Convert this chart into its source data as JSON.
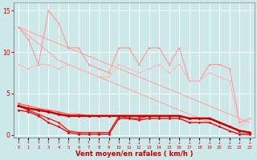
{
  "background_color": "#cce8e8",
  "grid_color": "#ffffff",
  "xlabel": "Vent moyen/en rafales ( km/h )",
  "xlabel_color": "#cc0000",
  "tick_color": "#cc0000",
  "arrow_symbols": [
    "↑",
    "↑",
    "↑",
    "↑",
    "↑",
    "↑",
    "↑",
    "↑",
    "↑",
    "↑",
    "↑",
    "↓",
    "↓",
    "↑",
    "↓",
    "↓",
    "↓",
    "↓",
    "↓",
    "↓",
    "↓",
    "↓",
    "↓",
    "↓"
  ],
  "x_labels": [
    "0",
    "1",
    "2",
    "3",
    "4",
    "5",
    "6",
    "7",
    "8",
    "9",
    "10",
    "11",
    "12",
    "13",
    "14",
    "15",
    "16",
    "17",
    "18",
    "19",
    "20",
    "21",
    "22",
    "23"
  ],
  "ylim": [
    -0.3,
    16.0
  ],
  "yticks": [
    0,
    5,
    10,
    15
  ],
  "diag_top": [
    13.0,
    12.5,
    12.0,
    11.5,
    11.0,
    10.5,
    10.0,
    9.5,
    9.0,
    8.5,
    8.0,
    7.5,
    7.0,
    6.5,
    6.0,
    5.5,
    5.0,
    4.5,
    4.0,
    3.5,
    3.0,
    2.5,
    2.0,
    1.5
  ],
  "diag_bot": [
    13.0,
    12.0,
    11.0,
    10.0,
    9.0,
    8.5,
    8.0,
    7.5,
    7.0,
    6.5,
    6.0,
    5.5,
    5.0,
    4.5,
    4.0,
    3.5,
    3.0,
    2.5,
    2.0,
    1.5,
    1.0,
    0.5,
    0.0,
    0.0
  ],
  "zigzag1": [
    13.0,
    11.5,
    8.5,
    15.0,
    13.5,
    10.5,
    10.5,
    8.5,
    8.0,
    7.5,
    10.5,
    10.5,
    8.5,
    10.5,
    10.5,
    8.5,
    10.5,
    6.5,
    6.5,
    8.5,
    8.5,
    8.0,
    1.5,
    2.0
  ],
  "zigzag2": [
    8.5,
    8.0,
    8.5,
    8.5,
    8.0,
    8.5,
    8.0,
    7.5,
    7.0,
    7.0,
    8.5,
    8.0,
    7.5,
    8.0,
    8.5,
    7.5,
    8.5,
    6.5,
    6.5,
    7.5,
    7.0,
    6.5,
    1.0,
    2.0
  ],
  "red_line1": [
    3.5,
    3.2,
    3.0,
    2.8,
    2.5,
    2.3,
    2.3,
    2.3,
    2.3,
    2.3,
    2.3,
    2.3,
    2.3,
    2.3,
    2.3,
    2.3,
    2.3,
    2.0,
    2.0,
    2.0,
    1.5,
    1.0,
    0.5,
    0.3
  ],
  "red_line2": [
    3.5,
    3.0,
    2.5,
    2.0,
    1.5,
    0.5,
    0.3,
    0.3,
    0.3,
    0.3,
    2.3,
    2.0,
    2.0,
    2.3,
    2.3,
    2.3,
    2.3,
    2.0,
    2.0,
    2.0,
    1.5,
    1.0,
    0.5,
    0.3
  ],
  "red_line3": [
    3.0,
    2.8,
    2.3,
    1.5,
    1.0,
    0.3,
    0.1,
    0.1,
    0.1,
    0.1,
    2.0,
    2.0,
    1.8,
    2.0,
    2.0,
    2.0,
    2.0,
    1.5,
    1.5,
    1.5,
    1.0,
    0.5,
    0.1,
    0.1
  ],
  "red_line4": [
    3.8,
    3.5,
    3.2,
    3.0,
    2.8,
    2.5,
    2.5,
    2.3,
    2.3,
    2.3,
    2.3,
    2.3,
    2.3,
    2.3,
    2.3,
    2.3,
    2.3,
    2.0,
    2.0,
    2.0,
    1.5,
    1.0,
    0.5,
    0.3
  ]
}
